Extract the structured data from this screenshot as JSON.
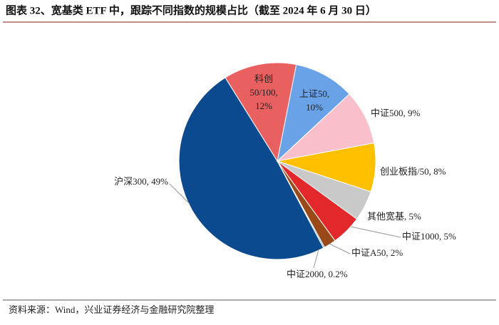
{
  "chart_data": {
    "type": "pie",
    "title": "图表 32、宽基类 ETF 中，跟踪不同指数的规模占比（截至 2024 年 6 月 30 日）",
    "values": [
      49,
      12,
      10,
      9,
      8,
      5,
      5,
      2,
      0.2
    ],
    "labels": [
      [
        "沪深300, 49%"
      ],
      [
        "科创",
        "50/100,",
        "12%"
      ],
      [
        "上证50,",
        "10%"
      ],
      [
        "中证500, 9%"
      ],
      [
        "创业板指/50, 8%"
      ],
      [
        "其他宽基, 5%"
      ],
      [
        "中证1000, 5%"
      ],
      [
        "中证A50, 2%"
      ],
      [
        "中证2000, 0.2%"
      ]
    ],
    "colors": [
      "#0b4a8e",
      "#e8605f",
      "#6aa2e8",
      "#f9c0cc",
      "#ffc000",
      "#c9c9c9",
      "#e2282a",
      "#9a4a18",
      "#5b9bd5"
    ],
    "source": "资料来源：Wind，兴业证券经济与金融研究院整理"
  }
}
